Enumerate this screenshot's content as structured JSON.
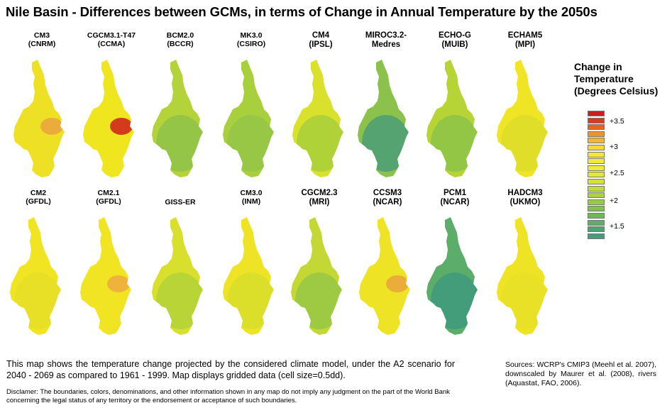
{
  "title": "Nile Basin - Differences between GCMs, in terms of Change in Annual Temperature by the 2050s",
  "models": [
    {
      "label": "CM3\n(CNRM)",
      "base": "#ede025",
      "hot": "#eba240"
    },
    {
      "label": "CGCM3.1-T47\n(CCMA)",
      "base": "#f0e620",
      "hot": "#cf1c1c"
    },
    {
      "label": "BCM2.0\n(BCCR)",
      "base": "#b4d23a",
      "cool": "#8fc34a"
    },
    {
      "label": "MK3.0\n(CSIRO)",
      "base": "#a8cf3c",
      "cool": "#95c648"
    },
    {
      "label": "CM4\n(IPSL)",
      "base": "#d9e12c",
      "cool": "#a8cf3c"
    },
    {
      "label": "MIROC3.2-\nMedres",
      "base": "#8cc24b",
      "cool": "#4a9e78"
    },
    {
      "label": "ECHO-G\n(MUIB)",
      "base": "#b6d436",
      "cool": "#8ec349"
    },
    {
      "label": "ECHAM5\n(MPI)",
      "base": "#f0e525",
      "cool": "#dedd2a"
    },
    {
      "label": "CM2\n(GFDL)",
      "base": "#f0e423",
      "cool": "#e6df28"
    },
    {
      "label": "CM2.1\n(GFDL)",
      "base": "#f0e423",
      "hot": "#eea93e"
    },
    {
      "label": "GISS-ER",
      "base": "#d8df2c",
      "cool": "#b4d23a"
    },
    {
      "label": "CM3.0\n(INM)",
      "base": "#eee325",
      "cool": "#d8de2c"
    },
    {
      "label": "CGCM2.3\n(MRI)",
      "base": "#c3d834",
      "cool": "#96c746"
    },
    {
      "label": "CCSM3\n(NCAR)",
      "base": "#eee325",
      "hot": "#eaa33d"
    },
    {
      "label": "PCM1\n(NCAR)",
      "base": "#5cad6a",
      "cool": "#3f9a7c"
    },
    {
      "label": "HADCM3\n(UKMO)",
      "base": "#eee325",
      "cool": "#e8e027"
    }
  ],
  "legend": {
    "title": "Change in\nTemperature\n(Degrees Celsius)",
    "colors": [
      "#c81e1e",
      "#dc3a1e",
      "#e8641e",
      "#f0922a",
      "#f3b535",
      "#f5d83c",
      "#f5e63a",
      "#f2ea36",
      "#eeec38",
      "#e2e838",
      "#d2e23a",
      "#c0dc3c",
      "#aad43e",
      "#96cc44",
      "#82c24c",
      "#6eb85a",
      "#5eae68",
      "#4ea274",
      "#479b7c"
    ],
    "ticks": [
      "+3.5",
      "+3",
      "+2.5",
      "+2",
      "+1.5"
    ]
  },
  "description": "This map shows the temperature change projected by the considered climate model, under the A2 scenario for 2040 - 2069 as compared to 1961 - 1999. Map displays gridded data (cell size=0.5dd).",
  "disclaimer": "Disclamer: The boundaries, colors, denominations, and other information shown in any map do not imply any judgment on the part of the World Bank concerning the legal status of any territory or the endorsement or acceptance of such boundaries.",
  "sources": "Sources: WCRP's CMIP3 (Meehl et al. 2007), downscaled by Maurer et al. (2008), rivers (Aquastat, FAO, 2006)."
}
